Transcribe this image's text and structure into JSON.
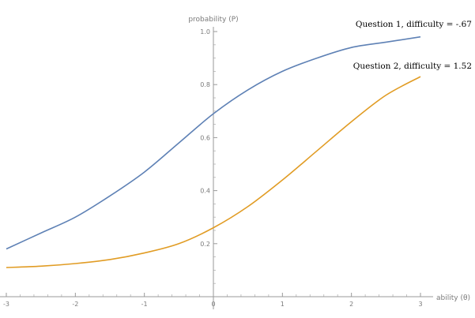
{
  "chart_data": {
    "type": "line",
    "title": "",
    "xlabel": "ability (θ)",
    "ylabel": "probability (P)",
    "xlim": [
      -3,
      3
    ],
    "ylim": [
      0,
      1
    ],
    "x_ticks": [
      -3,
      -2,
      -1,
      0,
      1,
      2,
      3
    ],
    "x_tick_labels": [
      "-3",
      "-2",
      "-1",
      "0",
      "1",
      "2",
      "3"
    ],
    "y_ticks": [
      0.2,
      0.4,
      0.6,
      0.8,
      1.0
    ],
    "y_tick_labels": [
      "0.2",
      "0.4",
      "0.6",
      "0.8",
      "1.0"
    ],
    "grid": false,
    "series": [
      {
        "name": "Question 1, difficulty = -.67",
        "color": "#5E81B5",
        "x": [
          -3,
          -2.5,
          -2,
          -1.5,
          -1,
          -0.5,
          0,
          0.5,
          1,
          1.5,
          2,
          2.5,
          3
        ],
        "values": [
          0.18,
          0.24,
          0.3,
          0.38,
          0.47,
          0.58,
          0.69,
          0.78,
          0.85,
          0.9,
          0.94,
          0.96,
          0.98
        ]
      },
      {
        "name": "Question 2, difficulty = 1.52",
        "color": "#E19C24",
        "x": [
          -3,
          -2.5,
          -2,
          -1.5,
          -1,
          -0.5,
          0,
          0.5,
          1,
          1.5,
          2,
          2.5,
          3
        ],
        "values": [
          0.11,
          0.115,
          0.125,
          0.14,
          0.165,
          0.2,
          0.26,
          0.34,
          0.44,
          0.55,
          0.66,
          0.76,
          0.83
        ]
      }
    ],
    "annotations": [
      "Question 1, difficulty = -.67",
      "Question 2, difficulty = 1.52"
    ]
  }
}
